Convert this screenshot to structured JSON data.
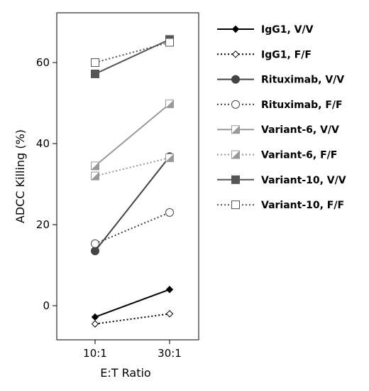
{
  "chart_data": {
    "type": "line",
    "title": "",
    "xlabel": "E:T Ratio",
    "ylabel": "ADCC Killing (%)",
    "categories": [
      "10:1",
      "30:1"
    ],
    "ylim": [
      -8,
      70
    ],
    "yticks": [
      "0",
      "20",
      "40",
      "60"
    ],
    "yticks_values": [
      0,
      20,
      40,
      60
    ],
    "grid": false,
    "legend_position": "right",
    "series": [
      {
        "name": "IgG1, V/V",
        "values": [
          -2.8,
          4.0
        ],
        "color": "#000000",
        "dash": "solid",
        "marker": "diamond",
        "fill": "filled"
      },
      {
        "name": "IgG1, F/F",
        "values": [
          -4.5,
          -2.0
        ],
        "color": "#000000",
        "dash": "dotted",
        "marker": "diamond",
        "fill": "open"
      },
      {
        "name": "Rituximab, V/V",
        "values": [
          13.5,
          36.8
        ],
        "color": "#444444",
        "dash": "solid",
        "marker": "circle",
        "fill": "filled"
      },
      {
        "name": "Rituximab, F/F",
        "values": [
          15.3,
          23.0
        ],
        "color": "#444444",
        "dash": "dotted",
        "marker": "circle",
        "fill": "open"
      },
      {
        "name": "Variant-6, V/V",
        "values": [
          34.5,
          49.8
        ],
        "color": "#999999",
        "dash": "solid",
        "marker": "half-square",
        "fill": "half"
      },
      {
        "name": "Variant-6, F/F",
        "values": [
          32.0,
          36.5
        ],
        "color": "#999999",
        "dash": "dotted",
        "marker": "half-square",
        "fill": "half"
      },
      {
        "name": "Variant-10, V/V",
        "values": [
          57.2,
          65.7
        ],
        "color": "#555555",
        "dash": "solid",
        "marker": "square",
        "fill": "filled"
      },
      {
        "name": "Variant-10, F/F",
        "values": [
          60.0,
          65.0
        ],
        "color": "#555555",
        "dash": "dotted",
        "marker": "square",
        "fill": "open"
      }
    ]
  }
}
